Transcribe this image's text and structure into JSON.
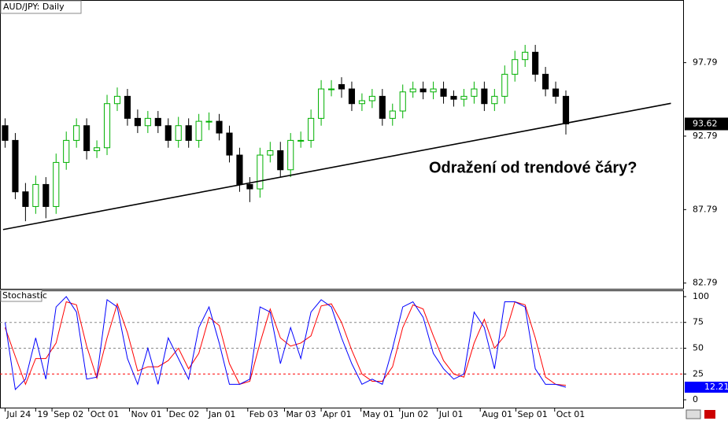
{
  "chart_data": [
    {
      "type": "candlestick",
      "title": "AUD/JPY: Daily",
      "up_color": "#00b000",
      "down_color": "#000000",
      "open": [
        93.5,
        92.5,
        89,
        88,
        89.5,
        88,
        91,
        92.5,
        93.5,
        91.8,
        92,
        95,
        95.5,
        94,
        93.5,
        94,
        93.5,
        92.5,
        93.5,
        92.5,
        93.8,
        93.8,
        93,
        91.5,
        89.5,
        89.2,
        91.5,
        91.8,
        90.5,
        92.5,
        92.5,
        94,
        96,
        96.3,
        96,
        95,
        95.2,
        95.5,
        94,
        94.5,
        95.8,
        96,
        95.8,
        96,
        95.5,
        95.3,
        95.5,
        96,
        95,
        95.5,
        97,
        98,
        98.5,
        97,
        96,
        95.5
      ],
      "high": [
        94.0,
        93.0,
        89.6,
        90.1,
        90.0,
        91.6,
        93.1,
        94.0,
        94.0,
        92.5,
        95.6,
        96.1,
        96.0,
        94.6,
        94.5,
        94.5,
        94.0,
        94.1,
        94.0,
        94.3,
        94.4,
        94.3,
        93.5,
        92.0,
        90.0,
        92.0,
        92.4,
        92.4,
        93.0,
        93.1,
        94.6,
        96.6,
        96.6,
        96.8,
        96.5,
        95.7,
        96.0,
        96.0,
        95.0,
        96.3,
        96.5,
        96.5,
        96.5,
        96.5,
        95.9,
        96.0,
        96.5,
        96.5,
        96.0,
        97.6,
        98.6,
        99.0,
        99.0,
        97.5,
        96.5,
        95.9
      ],
      "low": [
        92.0,
        88.5,
        87.0,
        87.5,
        87.2,
        87.5,
        90.5,
        92.0,
        91.2,
        91.3,
        91.5,
        94.5,
        93.5,
        93.0,
        93.0,
        93.0,
        92.0,
        92.0,
        92.0,
        92.0,
        93.2,
        92.5,
        91.0,
        89.0,
        88.3,
        88.6,
        91.0,
        90.0,
        90.0,
        92.0,
        92.0,
        93.5,
        95.5,
        95.4,
        94.5,
        94.5,
        94.7,
        93.5,
        93.5,
        94.0,
        95.4,
        95.3,
        95.3,
        95.0,
        94.8,
        94.8,
        95.0,
        94.5,
        94.5,
        95.0,
        96.5,
        97.5,
        96.5,
        95.5,
        95.0,
        92.9
      ],
      "close": [
        92.5,
        89,
        88,
        89.5,
        88,
        91,
        92.5,
        93.5,
        91.8,
        92,
        95,
        95.5,
        94,
        93.5,
        94,
        93.5,
        92.5,
        93.5,
        92.5,
        93.8,
        93.8,
        93,
        91.5,
        89.5,
        89.2,
        91.5,
        91.8,
        90.5,
        92.5,
        92.5,
        94,
        96,
        96,
        96,
        95,
        95.2,
        95.5,
        94,
        94.5,
        95.8,
        96,
        95.8,
        96,
        95.5,
        95.3,
        95.5,
        96,
        95,
        95.5,
        97,
        98,
        98.5,
        97,
        96,
        95.5,
        93.62
      ],
      "xlim": [
        -0.5,
        66.5
      ],
      "ylim": [
        82.4,
        102.0
      ],
      "yticks": [
        82.79,
        87.79,
        92.79,
        97.79
      ],
      "trendline": {
        "x": [
          -0.2,
          65.3
        ],
        "values": [
          86.43,
          95.02
        ],
        "color": "#000000"
      },
      "annotation": "Odražení od trendové čáry?"
    },
    {
      "type": "line",
      "title": "Stochastic",
      "series": [
        {
          "color": "#0000ff",
          "values": [
            75,
            10,
            20,
            60,
            20,
            90,
            100,
            85,
            20,
            22,
            97,
            90,
            40,
            15,
            50,
            15,
            60,
            40,
            20,
            70,
            90,
            55,
            15,
            15,
            20,
            90,
            85,
            35,
            70,
            40,
            85,
            97,
            90,
            60,
            35,
            15,
            20,
            15,
            50,
            90,
            95,
            80,
            45,
            30,
            20,
            25,
            85,
            70,
            30,
            95,
            95,
            90,
            30,
            15,
            15,
            12.21
          ]
        },
        {
          "color": "#ff0000",
          "values": [
            70,
            42,
            15,
            40,
            40,
            55,
            95,
            92,
            52,
            21,
            60,
            93,
            65,
            28,
            32,
            32,
            38,
            50,
            30,
            45,
            80,
            72,
            35,
            15,
            18,
            55,
            88,
            60,
            52,
            55,
            62,
            91,
            93,
            75,
            48,
            25,
            18,
            18,
            32,
            70,
            92,
            88,
            62,
            38,
            25,
            22,
            55,
            78,
            50,
            62,
            95,
            92,
            60,
            22,
            15,
            14
          ]
        }
      ],
      "xlim": [
        -0.5,
        66.5
      ],
      "ylim": [
        -7.6,
        105.3
      ],
      "yticks": [
        0,
        25,
        50,
        75,
        100
      ],
      "levels": [
        25,
        50,
        75
      ],
      "xticks": [
        {
          "value": 0,
          "label": "Jul 24"
        },
        {
          "value": 3,
          "label": "19"
        },
        {
          "value": 4.6,
          "label": "Sep 02"
        },
        {
          "value": 8.2,
          "label": "Oct 01"
        },
        {
          "value": 12.2,
          "label": "Nov 01"
        },
        {
          "value": 15.9,
          "label": "Dec 02"
        },
        {
          "value": 19.8,
          "label": "Jan 01"
        },
        {
          "value": 23.8,
          "label": "Feb 03"
        },
        {
          "value": 27.4,
          "label": "Mar 03"
        },
        {
          "value": 31,
          "label": "Apr 01"
        },
        {
          "value": 34.9,
          "label": "May 01"
        },
        {
          "value": 38.7,
          "label": "Jun 02"
        },
        {
          "value": 42.4,
          "label": "Jul 01"
        },
        {
          "value": 46.6,
          "label": "Aug 01"
        },
        {
          "value": 50.1,
          "label": "Sep 01"
        },
        {
          "value": 53.9,
          "label": "Oct 01"
        }
      ]
    }
  ]
}
